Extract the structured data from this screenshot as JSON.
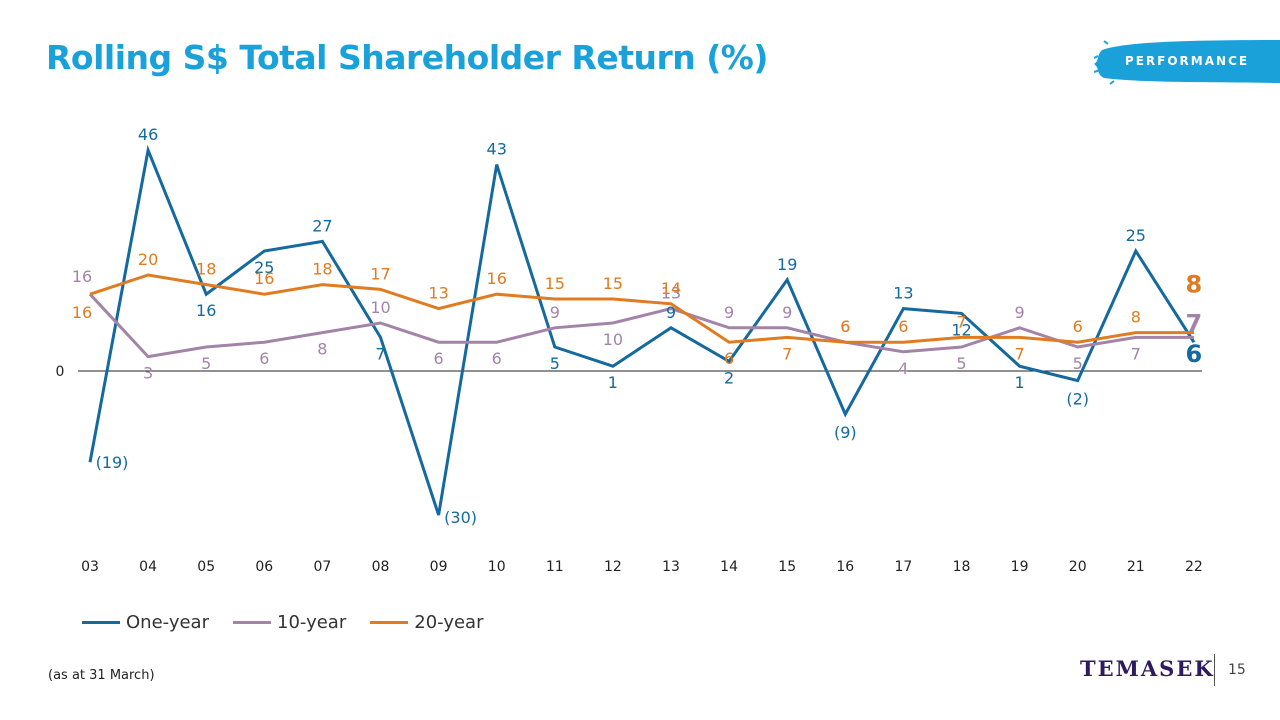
{
  "header": {
    "title": "Rolling S$ Total Shareholder Return (%)",
    "badge": "PERFORMANCE"
  },
  "chart_data": {
    "type": "line",
    "title": "Rolling S$ Total Shareholder Return (%)",
    "xlabel": "",
    "ylabel": "",
    "categories": [
      "03",
      "04",
      "05",
      "06",
      "07",
      "08",
      "09",
      "10",
      "11",
      "12",
      "13",
      "14",
      "15",
      "16",
      "17",
      "18",
      "19",
      "20",
      "21",
      "22"
    ],
    "ylim": [
      -35,
      50
    ],
    "zero_label": "0",
    "grid": false,
    "legend_position": "bottom-left",
    "series": [
      {
        "name": "One-year",
        "color": "#14699e",
        "values": [
          -19,
          46,
          16,
          25,
          27,
          7,
          -30,
          43,
          5,
          1,
          9,
          2,
          19,
          -9,
          13,
          12,
          1,
          -2,
          25,
          6
        ],
        "labels": [
          "(19)",
          "46",
          "16",
          "25",
          "27",
          "7",
          "(30)",
          "43",
          "5",
          "1",
          "9",
          "2",
          "19",
          "(9)",
          "13",
          "12",
          "1",
          "(2)",
          "25",
          "6"
        ]
      },
      {
        "name": "10-year",
        "color": "#a384a8",
        "values": [
          16,
          3,
          5,
          6,
          8,
          10,
          6,
          6,
          9,
          10,
          13,
          9,
          9,
          6,
          4,
          5,
          9,
          5,
          7,
          7
        ],
        "labels": [
          "16",
          "3",
          "5",
          "6",
          "8",
          "10",
          "6",
          "6",
          "9",
          "10",
          "13",
          "9",
          "9",
          "6",
          "4",
          "5",
          "9",
          "5",
          "7",
          "7"
        ]
      },
      {
        "name": "20-year",
        "color": "#e07b20",
        "values": [
          16,
          20,
          18,
          16,
          18,
          17,
          13,
          16,
          15,
          15,
          14,
          6,
          7,
          6,
          6,
          7,
          7,
          6,
          8,
          8
        ],
        "labels": [
          "16",
          "20",
          "18",
          "16",
          "18",
          "17",
          "13",
          "16",
          "15",
          "15",
          "14",
          "6",
          "7",
          "6",
          "6",
          "7",
          "7",
          "6",
          "8",
          "8"
        ]
      }
    ]
  },
  "legend": {
    "items": [
      {
        "label": "One-year",
        "color": "#14699e"
      },
      {
        "label": "10-year",
        "color": "#a384a8"
      },
      {
        "label": "20-year",
        "color": "#e07b20"
      }
    ]
  },
  "footer": {
    "note": "(as at 31 March)",
    "brand": "TEMASEK",
    "page": "15"
  }
}
